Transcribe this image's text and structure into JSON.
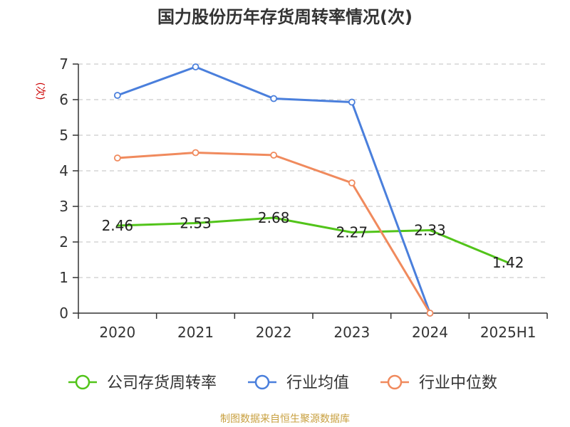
{
  "chart_data": {
    "type": "line",
    "title": "国力股份历年存货周转率情况(次)",
    "ylabel": "(次)",
    "xlabel": "",
    "categories": [
      "2020",
      "2021",
      "2022",
      "2023",
      "2024",
      "2025H1"
    ],
    "ylim": [
      0,
      7
    ],
    "yticks": [
      0,
      1,
      2,
      3,
      4,
      5,
      6,
      7
    ],
    "grid": true,
    "legend_position": "bottom",
    "series": [
      {
        "name": "公司存货周转率",
        "color": "#52c41a",
        "values": [
          2.46,
          2.53,
          2.68,
          2.27,
          2.33,
          1.42
        ],
        "labels": [
          "2.46",
          "2.53",
          "2.68",
          "2.27",
          "2.33",
          "1.42"
        ],
        "show_markers": false,
        "show_labels": true
      },
      {
        "name": "行业均值",
        "color": "#4a7fdc",
        "values": [
          6.12,
          6.92,
          6.03,
          5.93,
          0,
          null
        ],
        "show_markers": true,
        "show_labels": false
      },
      {
        "name": "行业中位数",
        "color": "#f08a5d",
        "values": [
          4.36,
          4.51,
          4.44,
          3.66,
          0,
          null
        ],
        "show_markers": true,
        "show_labels": false
      }
    ]
  },
  "source_note": "制图数据来自恒生聚源数据库",
  "colors": {
    "title": "#333333",
    "ylabel": "#cc0000",
    "source_note": "#c8a040",
    "grid": "#cccccc",
    "axis": "#333333"
  }
}
